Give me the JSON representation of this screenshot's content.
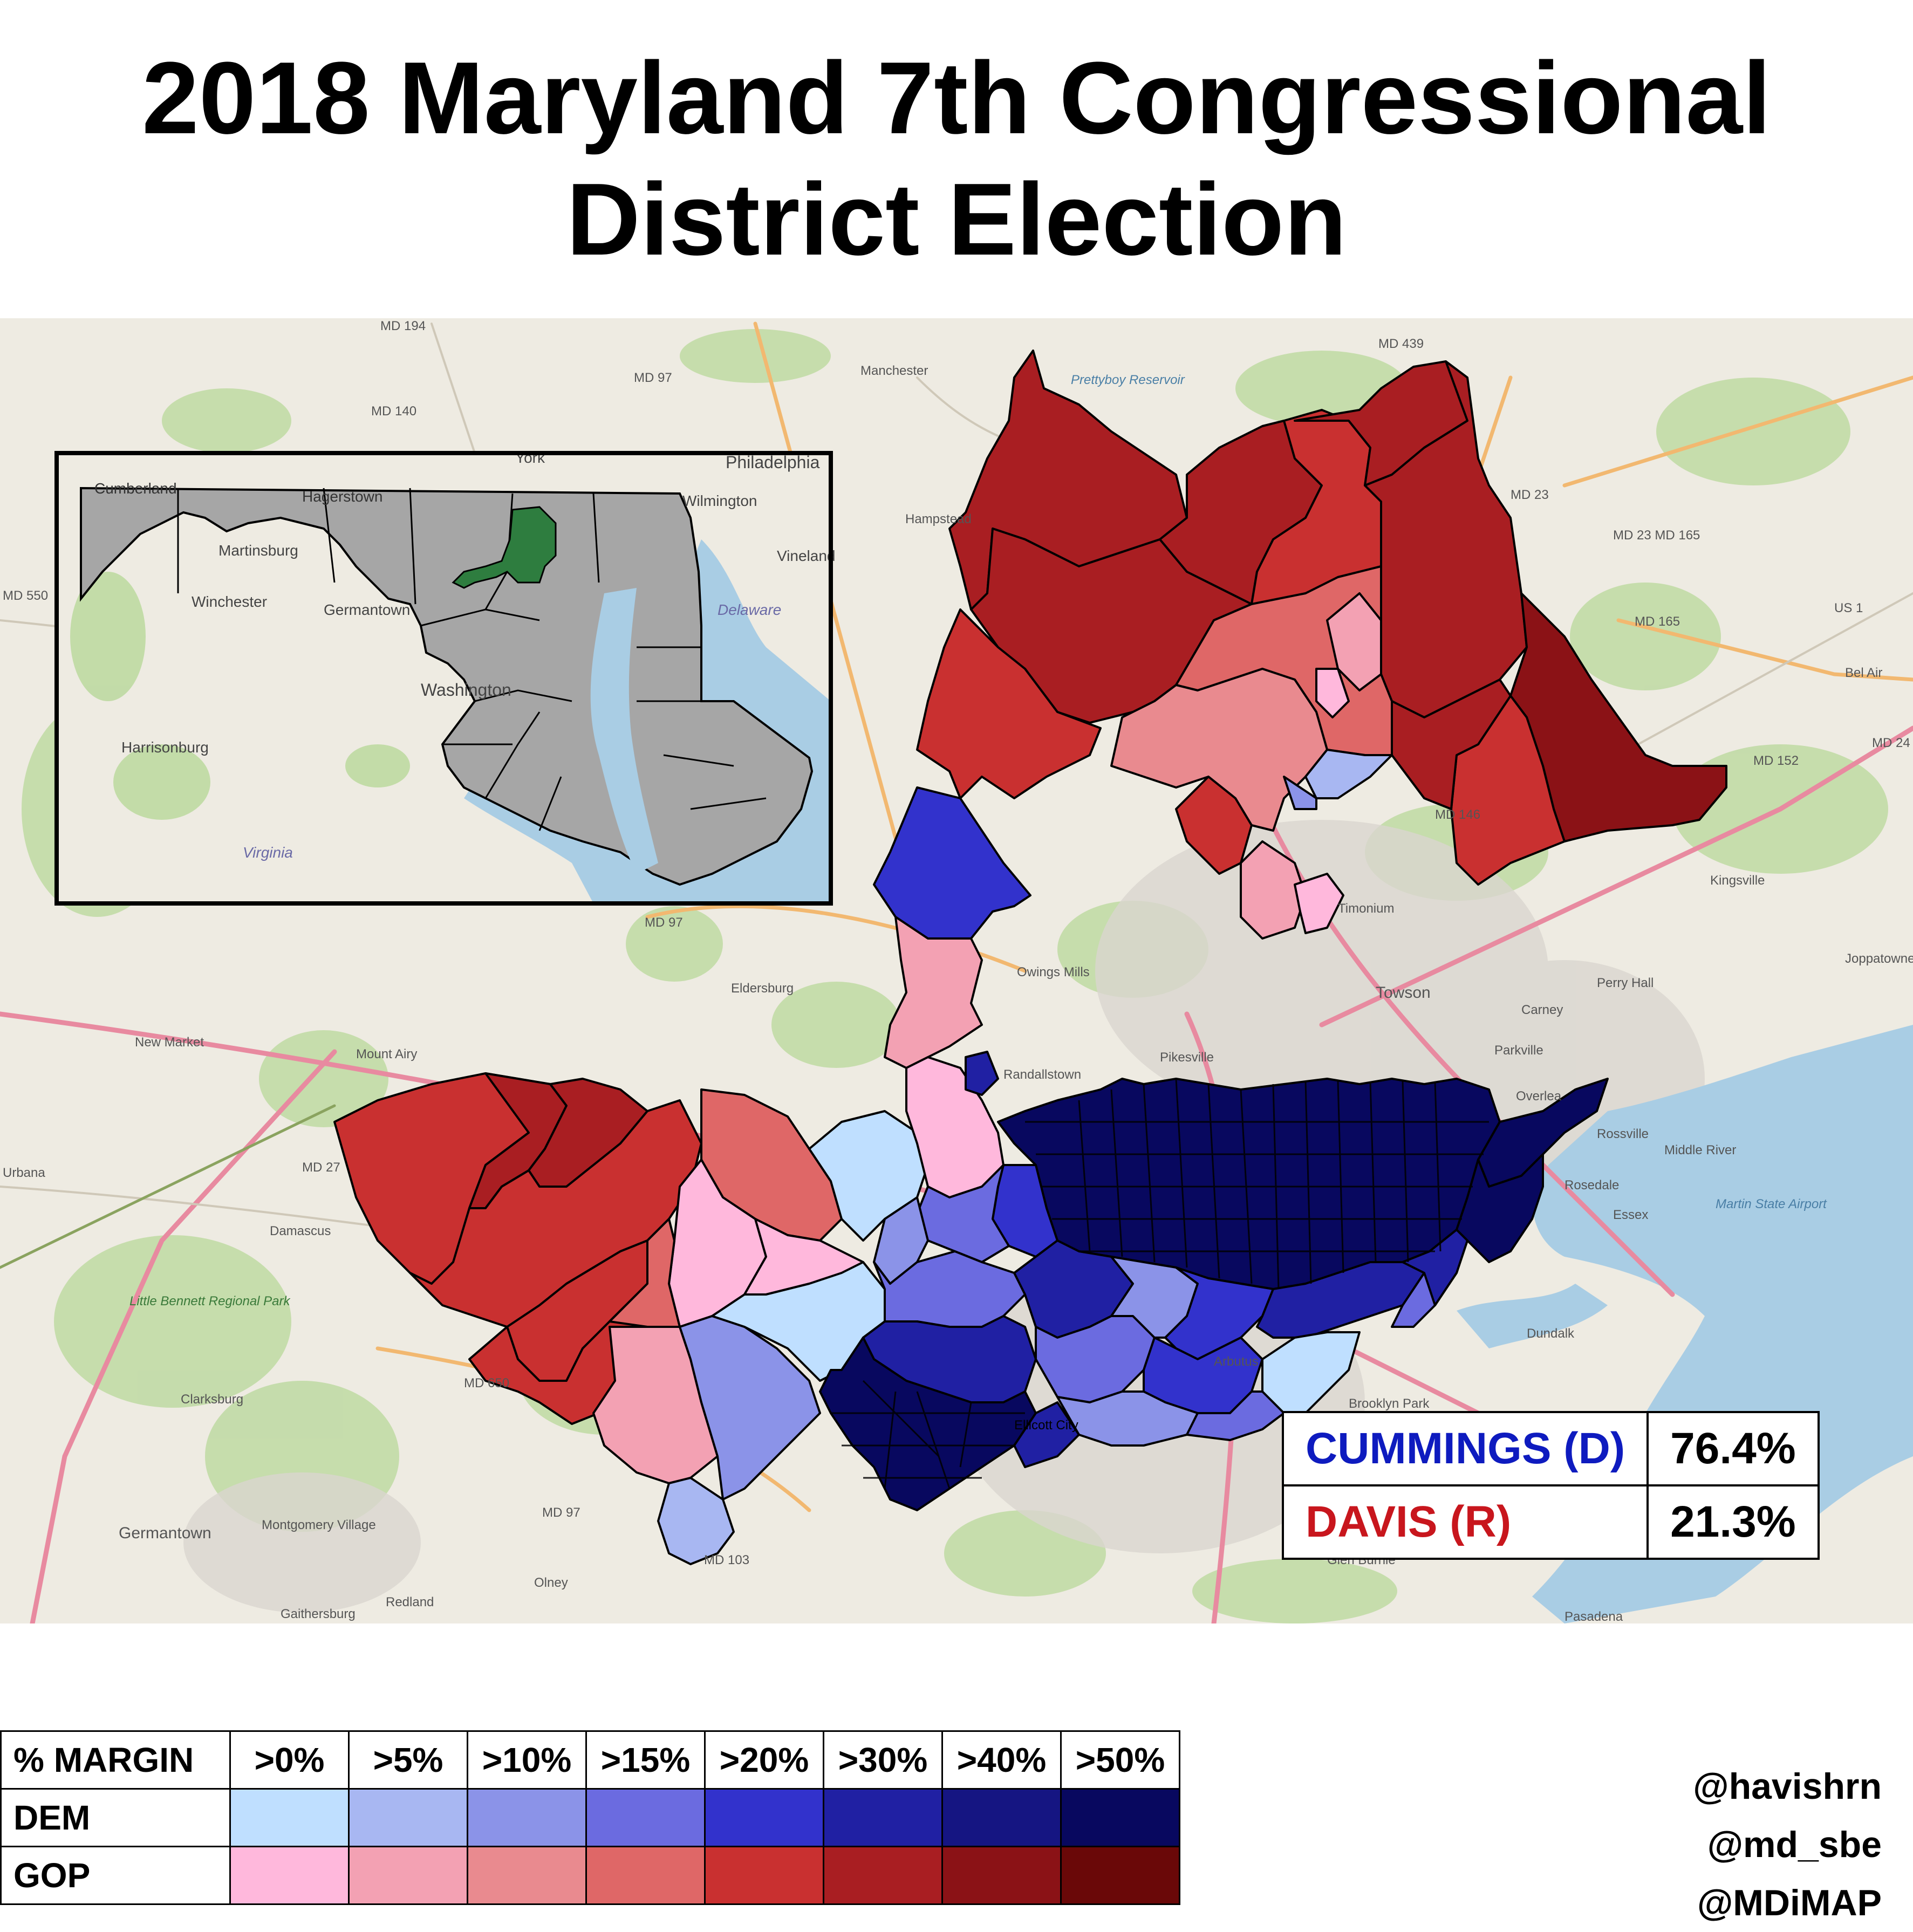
{
  "title_line1": "2018 Maryland 7th Congressional",
  "title_line2": "District Election",
  "results": [
    {
      "candidate": "CUMMINGS (D)",
      "percent": "76.4%",
      "color": "#0e1bbf"
    },
    {
      "candidate": "DAVIS (R)",
      "percent": "21.3%",
      "color": "#c8161d"
    }
  ],
  "legend": {
    "header": "% MARGIN",
    "thresholds": [
      ">0%",
      ">5%",
      ">10%",
      ">15%",
      ">20%",
      ">30%",
      ">40%",
      ">50%"
    ],
    "rows": [
      {
        "label": "DEM",
        "colors": [
          "#bfdfff",
          "#a8b7f2",
          "#8b93e8",
          "#6b6be0",
          "#3232cc",
          "#2020a3",
          "#151582",
          "#08085f"
        ]
      },
      {
        "label": "GOP",
        "colors": [
          "#ffb8dc",
          "#f3a1b3",
          "#e98a8f",
          "#df6767",
          "#c93030",
          "#a91e22",
          "#8b1216",
          "#6a0808"
        ]
      }
    ]
  },
  "credits": [
    "@havishrn",
    "@md_sbe",
    "@MDiMAP"
  ],
  "map_labels": [
    {
      "id": "md194",
      "text": "MD 194"
    },
    {
      "id": "md97a",
      "text": "MD 97"
    },
    {
      "id": "md140",
      "text": "MD 140"
    },
    {
      "id": "manchester",
      "text": "Manchester"
    },
    {
      "id": "prettyboy",
      "text": "Prettyboy Reservoir"
    },
    {
      "id": "md439",
      "text": "MD 439"
    },
    {
      "id": "hampstead",
      "text": "Hampstead"
    },
    {
      "id": "md23",
      "text": "MD 23"
    },
    {
      "id": "md23b",
      "text": "MD 23 MD 165"
    },
    {
      "id": "md165",
      "text": "MD 165"
    },
    {
      "id": "us1",
      "text": "US 1"
    },
    {
      "id": "belair",
      "text": "Bel Air"
    },
    {
      "id": "md24",
      "text": "MD 24"
    },
    {
      "id": "md152",
      "text": "MD 152"
    },
    {
      "id": "md146",
      "text": "MD 146"
    },
    {
      "id": "kingsville",
      "text": "Kingsville"
    },
    {
      "id": "joppatowne",
      "text": "Joppatowne"
    },
    {
      "id": "perryhall",
      "text": "Perry Hall"
    },
    {
      "id": "towson",
      "text": "Towson"
    },
    {
      "id": "carney",
      "text": "Carney"
    },
    {
      "id": "parkville",
      "text": "Parkville"
    },
    {
      "id": "overlea",
      "text": "Overlea"
    },
    {
      "id": "rossville",
      "text": "Rossville"
    },
    {
      "id": "middleriver",
      "text": "Middle River"
    },
    {
      "id": "rosedale",
      "text": "Rosedale"
    },
    {
      "id": "essex",
      "text": "Essex"
    },
    {
      "id": "martinairport",
      "text": "Martin State Airport"
    },
    {
      "id": "dundalk",
      "text": "Dundalk"
    },
    {
      "id": "timonium",
      "text": "Timonium"
    },
    {
      "id": "owingsmills",
      "text": "Owings Mills"
    },
    {
      "id": "pikesville",
      "text": "Pikesville"
    },
    {
      "id": "randallstown",
      "text": "Randallstown"
    },
    {
      "id": "eldersburg",
      "text": "Eldersburg"
    },
    {
      "id": "md97b",
      "text": "MD 97"
    },
    {
      "id": "newmarket",
      "text": "New Market"
    },
    {
      "id": "mountairy",
      "text": "Mount Airy"
    },
    {
      "id": "md27",
      "text": "MD 27"
    },
    {
      "id": "urbana",
      "text": "Urbana"
    },
    {
      "id": "damascus",
      "text": "Damascus"
    },
    {
      "id": "littlebennett",
      "text": "Little Bennett Regional Park"
    },
    {
      "id": "clarksburg",
      "text": "Clarksburg"
    },
    {
      "id": "md650",
      "text": "MD 650"
    },
    {
      "id": "germantown",
      "text": "Germantown"
    },
    {
      "id": "montgomeryvillage",
      "text": "Montgomery Village"
    },
    {
      "id": "gaithersburg",
      "text": "Gaithersburg"
    },
    {
      "id": "redland",
      "text": "Redland"
    },
    {
      "id": "olney",
      "text": "Olney"
    },
    {
      "id": "md97c",
      "text": "MD 97"
    },
    {
      "id": "md103",
      "text": "MD 103"
    },
    {
      "id": "arbutus",
      "text": "Arbutus"
    },
    {
      "id": "glenburnie",
      "text": "Glen Burnie"
    },
    {
      "id": "pasadena",
      "text": "Pasadena"
    },
    {
      "id": "brooklynpark",
      "text": "Brooklyn Park"
    },
    {
      "id": "md550",
      "text": "MD 550"
    },
    {
      "id": "ellicott",
      "text": "Ellicott City"
    }
  ],
  "inset_labels": [
    {
      "id": "york",
      "text": "York"
    },
    {
      "id": "philadelphia",
      "text": "Philadelphia"
    },
    {
      "id": "wilmington",
      "text": "Wilmington"
    },
    {
      "id": "vineland",
      "text": "Vineland"
    },
    {
      "id": "martinsburg",
      "text": "Martinsburg"
    },
    {
      "id": "winchester",
      "text": "Winchester"
    },
    {
      "id": "germantown_i",
      "text": "Germantown"
    },
    {
      "id": "washington",
      "text": "Washington"
    },
    {
      "id": "delaware",
      "text": "Delaware"
    },
    {
      "id": "harrisonburg",
      "text": "Harrisonburg"
    },
    {
      "id": "virginia",
      "text": "Virginia"
    },
    {
      "id": "cumberland",
      "text": "Cumberland"
    },
    {
      "id": "hagerstown",
      "text": "Hagerstown"
    }
  ]
}
